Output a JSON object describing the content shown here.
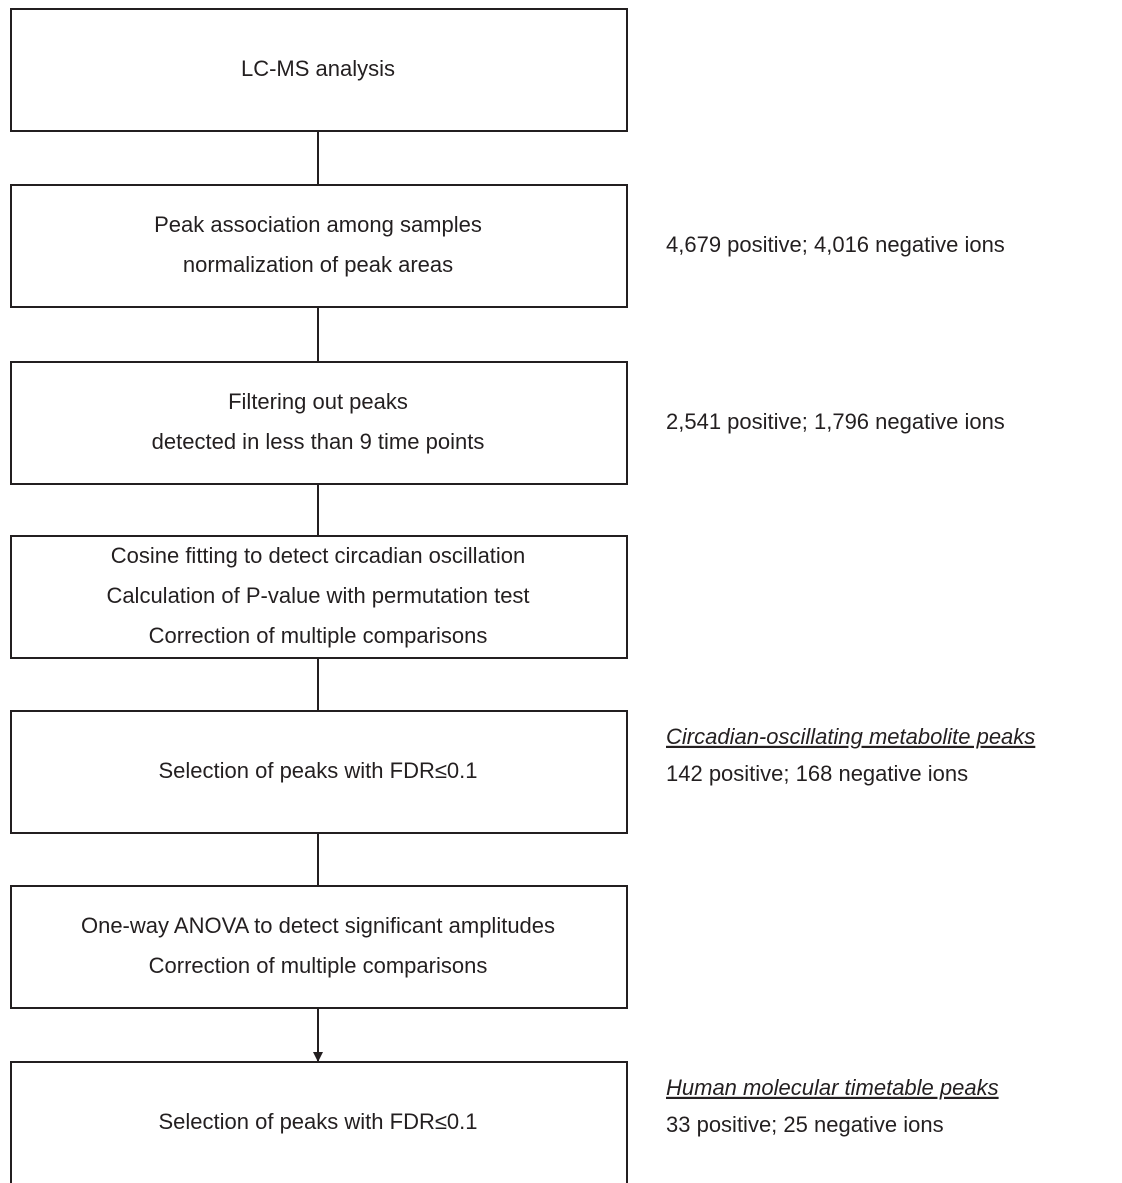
{
  "nodes": [
    {
      "lines": [
        "LC-MS analysis"
      ]
    },
    {
      "lines": [
        "Peak association among samples",
        "normalization of peak areas"
      ],
      "note": "4,679 positive; 4,016 negative ions"
    },
    {
      "lines": [
        "Filtering out peaks",
        "detected in less than 9 time points"
      ],
      "note": "2,541 positive; 1,796 negative ions"
    },
    {
      "lines": [
        "Cosine fitting to detect circadian oscillation",
        "Calculation of P-value with permutation test",
        "Correction of multiple comparisons"
      ]
    },
    {
      "lines": [
        "Selection of peaks with FDR≤0.1"
      ],
      "note_heading": "Circadian-oscillating metabolite peaks",
      "note": "142 positive; 168 negative ions"
    },
    {
      "lines": [
        "One-way ANOVA to detect significant amplitudes",
        "Correction of multiple comparisons"
      ]
    },
    {
      "lines": [
        "Selection of peaks with FDR≤0.1"
      ],
      "note_heading": "Human molecular timetable peaks",
      "note": "33 positive; 25 negative ions"
    }
  ]
}
